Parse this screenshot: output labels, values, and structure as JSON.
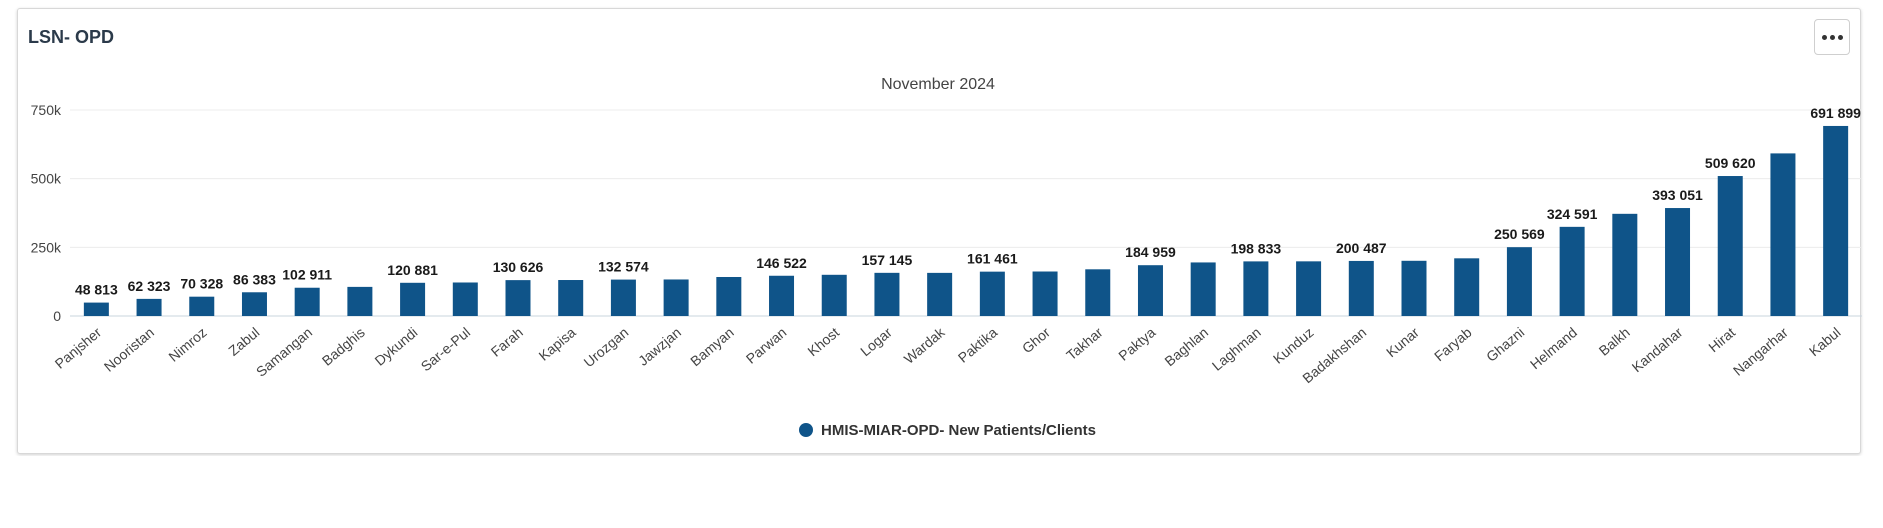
{
  "card": {
    "title": "LSN- OPD",
    "menu_icon": "more-horizontal-icon"
  },
  "chart_data": {
    "type": "bar",
    "subtitle": "November 2024",
    "categories": [
      "Panjsher",
      "Nooristan",
      "Nimroz",
      "Zabul",
      "Samangan",
      "Badghis",
      "Dykundi",
      "Sar-e-Pul",
      "Farah",
      "Kapisa",
      "Urozgan",
      "Jawzjan",
      "Bamyan",
      "Parwan",
      "Khost",
      "Logar",
      "Wardak",
      "Paktika",
      "Ghor",
      "Takhar",
      "Paktya",
      "Baghlan",
      "Laghman",
      "Kunduz",
      "Badakhshan",
      "Kunar",
      "Faryab",
      "Ghazni",
      "Helmand",
      "Balkh",
      "Kandahar",
      "Hirat",
      "Nangarhar",
      "Kabul"
    ],
    "series": [
      {
        "name": "HMIS-MIAR-OPD- New Patients/Clients",
        "color": "#0f5489",
        "values": [
          48813,
          62323,
          70328,
          86383,
          102911,
          106000,
          120881,
          122000,
          130626,
          131000,
          132574,
          133000,
          142000,
          146522,
          150000,
          157145,
          157000,
          161461,
          162000,
          170000,
          184959,
          195000,
          198833,
          199000,
          200487,
          201000,
          210000,
          250569,
          324591,
          372000,
          393051,
          509620,
          592000,
          691899
        ]
      }
    ],
    "data_labels": [
      "48 813",
      "62 323",
      "70 328",
      "86 383",
      "102 911",
      "",
      "120 881",
      "",
      "130 626",
      "",
      "132 574",
      "",
      "",
      "146 522",
      "",
      "157 145",
      "",
      "161 461",
      "",
      "",
      "184 959",
      "",
      "198 833",
      "",
      "200 487",
      "",
      "",
      "250 569",
      "324 591",
      "",
      "393 051",
      "509 620",
      "",
      "691 899"
    ],
    "y_ticks": [
      0,
      250000,
      500000,
      750000
    ],
    "y_tick_labels": [
      "0",
      "250k",
      "500k",
      "750k"
    ],
    "ylim": [
      0,
      750000
    ],
    "grid": true,
    "legend_position": "bottom-center"
  }
}
